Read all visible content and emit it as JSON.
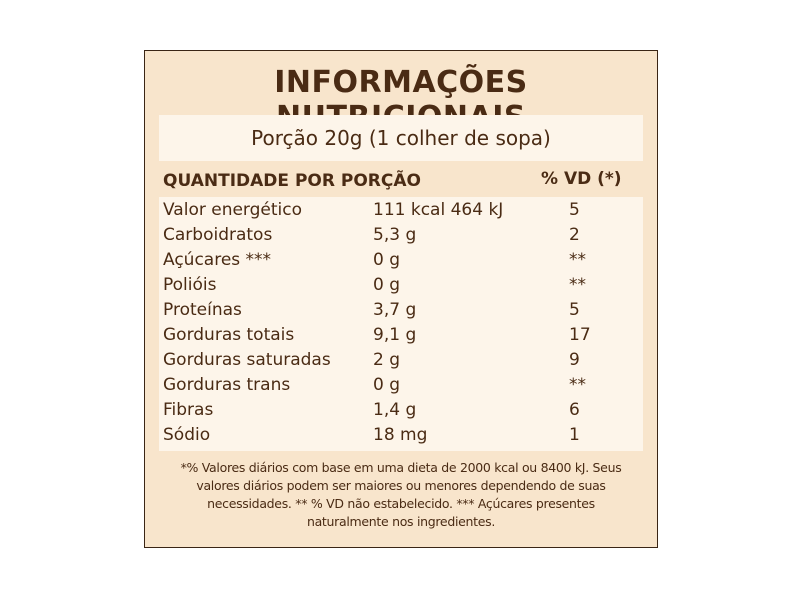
{
  "title": "INFORMAÇÕES NUTRICIONAIS",
  "serving": "Porção 20g (1 colher de sopa)",
  "header": {
    "quantity": "QUANTIDADE POR PORÇÃO",
    "vd": "% VD (*)"
  },
  "rows": [
    {
      "name": "Valor energético",
      "amount": "111 kcal  464 kJ",
      "vd": "5"
    },
    {
      "name": "Carboidratos",
      "amount": "5,3 g",
      "vd": "2"
    },
    {
      "name": "Açúcares ***",
      "amount": "0 g",
      "vd": "**"
    },
    {
      "name": "Polióis",
      "amount": "0 g",
      "vd": "**"
    },
    {
      "name": "Proteínas",
      "amount": "3,7 g",
      "vd": "5"
    },
    {
      "name": "Gorduras totais",
      "amount": "9,1 g",
      "vd": "17"
    },
    {
      "name": "Gorduras saturadas",
      "amount": "2 g",
      "vd": "9"
    },
    {
      "name": "Gorduras trans",
      "amount": "0 g",
      "vd": "**"
    },
    {
      "name": "Fibras",
      "amount": "1,4 g",
      "vd": "6"
    },
    {
      "name": "Sódio",
      "amount": "18 mg",
      "vd": "1"
    }
  ],
  "footnote": {
    "line1": "*% Valores diários com base em uma dieta de 2000 kcal ou 8400 kJ. Seus",
    "line2": "valores diários podem ser maiores ou menores dependendo de suas",
    "line3": "necessidades. ** % VD não estabelecido. *** Açúcares presentes",
    "line4": "naturalmente nos ingredientes."
  }
}
